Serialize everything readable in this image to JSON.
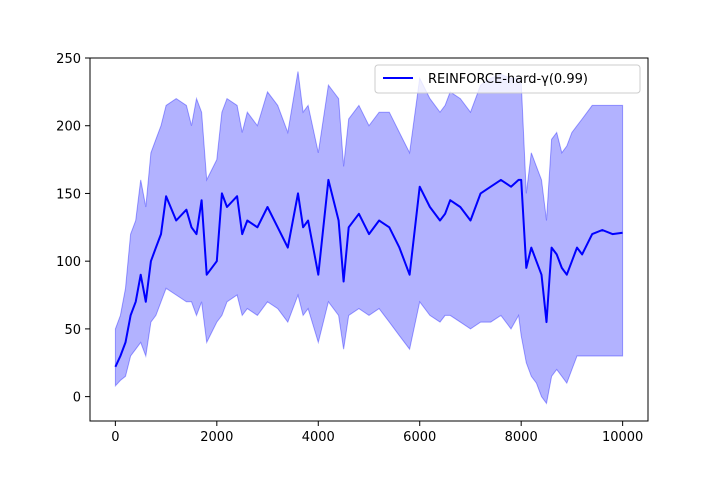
{
  "chart_data": {
    "type": "line",
    "title": "",
    "xlabel": "",
    "ylabel": "",
    "xlim": [
      -500,
      10500
    ],
    "ylim": [
      -18,
      250
    ],
    "xticks": [
      0,
      2000,
      4000,
      6000,
      8000,
      10000
    ],
    "yticks": [
      0,
      50,
      100,
      150,
      200,
      250
    ],
    "grid": false,
    "legend_position": "top-right",
    "series": [
      {
        "name": "REINFORCE-hard-γ(0.99)",
        "color": "#0000ff",
        "band_color": "#0000ff",
        "x": [
          0,
          100,
          200,
          300,
          400,
          500,
          600,
          700,
          800,
          900,
          1000,
          1200,
          1400,
          1500,
          1600,
          1700,
          1800,
          2000,
          2100,
          2200,
          2400,
          2500,
          2600,
          2800,
          3000,
          3200,
          3400,
          3600,
          3700,
          3800,
          4000,
          4200,
          4400,
          4500,
          4600,
          4800,
          5000,
          5200,
          5400,
          5600,
          5800,
          6000,
          6200,
          6400,
          6500,
          6600,
          6800,
          7000,
          7200,
          7400,
          7600,
          7800,
          7950,
          8000,
          8100,
          8200,
          8300,
          8400,
          8500,
          8600,
          8700,
          8800,
          8900,
          9000,
          9100,
          9200,
          9400,
          9600,
          9800,
          10000
        ],
        "mean": [
          22,
          30,
          40,
          60,
          70,
          90,
          70,
          100,
          110,
          120,
          148,
          130,
          138,
          125,
          120,
          145,
          90,
          100,
          150,
          140,
          148,
          120,
          130,
          125,
          140,
          125,
          110,
          150,
          125,
          130,
          90,
          160,
          130,
          85,
          125,
          135,
          120,
          130,
          125,
          110,
          90,
          155,
          140,
          130,
          135,
          145,
          140,
          130,
          150,
          155,
          160,
          155,
          160,
          160,
          95,
          110,
          100,
          90,
          55,
          110,
          105,
          95,
          90,
          100,
          110,
          105,
          120,
          123,
          120,
          121
        ],
        "lower": [
          8,
          12,
          15,
          30,
          35,
          40,
          30,
          55,
          60,
          70,
          80,
          75,
          70,
          70,
          60,
          70,
          40,
          55,
          60,
          70,
          75,
          60,
          65,
          60,
          70,
          65,
          55,
          75,
          60,
          65,
          40,
          70,
          60,
          35,
          60,
          65,
          60,
          65,
          55,
          45,
          35,
          70,
          60,
          55,
          60,
          60,
          55,
          50,
          55,
          55,
          60,
          50,
          60,
          45,
          25,
          15,
          10,
          0,
          -5,
          15,
          20,
          15,
          10,
          20,
          30,
          30,
          30,
          30,
          30,
          30
        ],
        "upper": [
          50,
          60,
          80,
          120,
          130,
          160,
          140,
          180,
          190,
          200,
          215,
          220,
          215,
          200,
          220,
          210,
          160,
          175,
          210,
          220,
          215,
          195,
          210,
          200,
          225,
          215,
          195,
          240,
          210,
          215,
          180,
          230,
          220,
          170,
          205,
          215,
          200,
          210,
          210,
          195,
          180,
          235,
          220,
          210,
          215,
          225,
          220,
          210,
          230,
          235,
          238,
          235,
          235,
          232,
          150,
          180,
          170,
          160,
          130,
          190,
          195,
          180,
          185,
          195,
          200,
          205,
          215,
          215,
          215,
          215
        ]
      }
    ]
  }
}
